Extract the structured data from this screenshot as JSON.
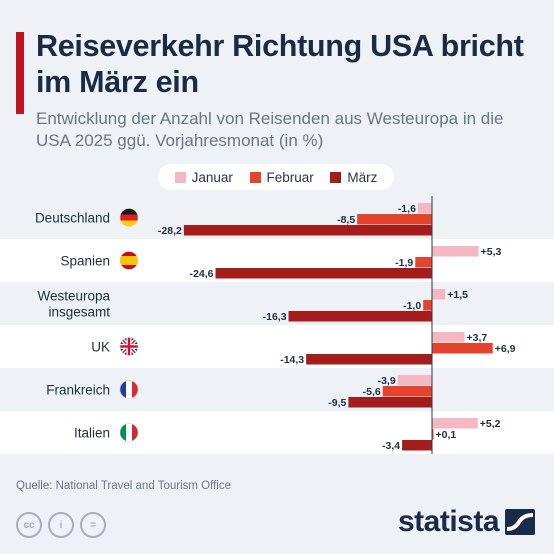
{
  "header": {
    "title": "Reiseverkehr Richtung USA bricht im März ein",
    "subtitle": "Entwicklung der Anzahl von Reisenden aus Westeuropa in die USA 2025 ggü. Vorjahresmonat (in %)"
  },
  "colors": {
    "januar": "#f5b8c2",
    "februar": "#e4432d",
    "maerz": "#a51c1c",
    "title_bar": "#c1121f"
  },
  "chart_data": {
    "type": "bar",
    "orientation": "horizontal",
    "categories": [
      "Deutschland",
      "Spanien",
      "Westeuropa insgesamt",
      "UK",
      "Frankreich",
      "Italien"
    ],
    "category_icons": [
      "flag-germany",
      "flag-spain",
      "",
      "flag-uk",
      "flag-france",
      "flag-italy"
    ],
    "series": [
      {
        "name": "Januar",
        "values": [
          -1.6,
          5.3,
          1.5,
          3.7,
          -3.9,
          5.2
        ],
        "labels": [
          "-1,6",
          "+5,3",
          "+1,5",
          "+3,7",
          "-3,9",
          "+5,2"
        ]
      },
      {
        "name": "Februar",
        "values": [
          -8.5,
          -1.9,
          -1.0,
          6.9,
          -5.6,
          0.1
        ],
        "labels": [
          "-8,5",
          "-1,9",
          "-1,0",
          "+6,9",
          "-5,6",
          "+0,1"
        ]
      },
      {
        "name": "März",
        "values": [
          -28.2,
          -24.6,
          -16.3,
          -14.3,
          -9.5,
          -3.4
        ],
        "labels": [
          "-28,2",
          "-24,6",
          "-16,3",
          "-14,3",
          "-9,5",
          "-3,4"
        ]
      }
    ],
    "legend_position": "top"
  },
  "footer": {
    "source": "Quelle: National Travel and Tourism Office",
    "license_icons": [
      "cc-icon",
      "person-icon",
      "equals-icon"
    ],
    "license_glyphs": [
      "cc",
      "i",
      "="
    ],
    "logo": "statista"
  }
}
